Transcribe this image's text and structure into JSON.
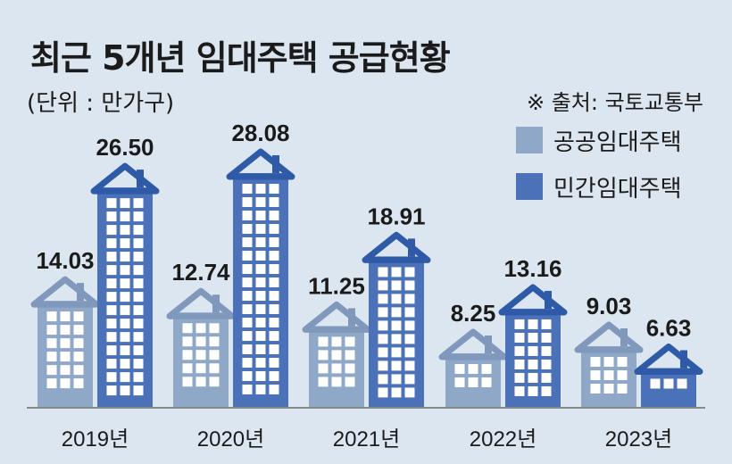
{
  "title": "최근 5개년 임대주택 공급현황",
  "unit": "(단위 : 만가구)",
  "source": "※ 출처: 국토교통부",
  "colors": {
    "public": "#8fa8c8",
    "public_dark": "#7f98bb",
    "private": "#4b72b8",
    "private_dark": "#2f5aa8",
    "window": "#ffffff",
    "background": "#dce6f0"
  },
  "chart_data": {
    "type": "bar",
    "categories": [
      "2019년",
      "2020년",
      "2021년",
      "2022년",
      "2023년"
    ],
    "series": [
      {
        "name": "공공임대주택",
        "values": [
          14.03,
          12.74,
          11.25,
          8.25,
          9.03
        ]
      },
      {
        "name": "민간임대주택",
        "values": [
          26.5,
          28.08,
          18.91,
          13.16,
          6.63
        ]
      }
    ],
    "value_labels": [
      [
        "14.03",
        "12.74",
        "11.25",
        "8.25",
        "9.03"
      ],
      [
        "26.50",
        "28.08",
        "18.91",
        "13.16",
        "6.63"
      ]
    ],
    "title": "최근 5개년 임대주택 공급현황",
    "xlabel": "",
    "ylabel": "",
    "ylim": [
      0,
      30
    ],
    "grid": false,
    "legend": "right"
  }
}
